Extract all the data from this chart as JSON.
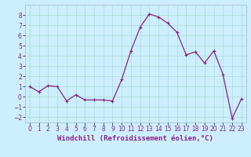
{
  "x": [
    0,
    1,
    2,
    3,
    4,
    5,
    6,
    7,
    8,
    9,
    10,
    11,
    12,
    13,
    14,
    15,
    16,
    17,
    18,
    19,
    20,
    21,
    22,
    23
  ],
  "y": [
    1,
    0.5,
    1.1,
    1.0,
    -0.4,
    0.2,
    -0.3,
    -0.3,
    -0.3,
    -0.4,
    1.7,
    4.5,
    6.8,
    8.1,
    7.8,
    7.2,
    6.3,
    4.1,
    4.4,
    3.3,
    4.5,
    2.2,
    -2.1,
    -0.2
  ],
  "line_color": "#882288",
  "marker": "+",
  "marker_size": 3,
  "marker_lw": 0.8,
  "linewidth": 0.9,
  "bg_color": "#cceeff",
  "grid_color": "#aaddcc",
  "xlabel": "Windchill (Refroidissement éolien,°C)",
  "ylim": [
    -2.5,
    9.0
  ],
  "xlim": [
    -0.5,
    23.5
  ],
  "yticks": [
    -2,
    -1,
    0,
    1,
    2,
    3,
    4,
    5,
    6,
    7,
    8
  ],
  "xtick_labels": [
    "0",
    "1",
    "2",
    "3",
    "4",
    "5",
    "6",
    "7",
    "8",
    "9",
    "10",
    "11",
    "12",
    "13",
    "14",
    "15",
    "16",
    "17",
    "18",
    "19",
    "20",
    "21",
    "22",
    "23"
  ],
  "tick_color": "#882288",
  "label_color": "#882288",
  "tick_fontsize": 5.5,
  "xlabel_fontsize": 6.5
}
